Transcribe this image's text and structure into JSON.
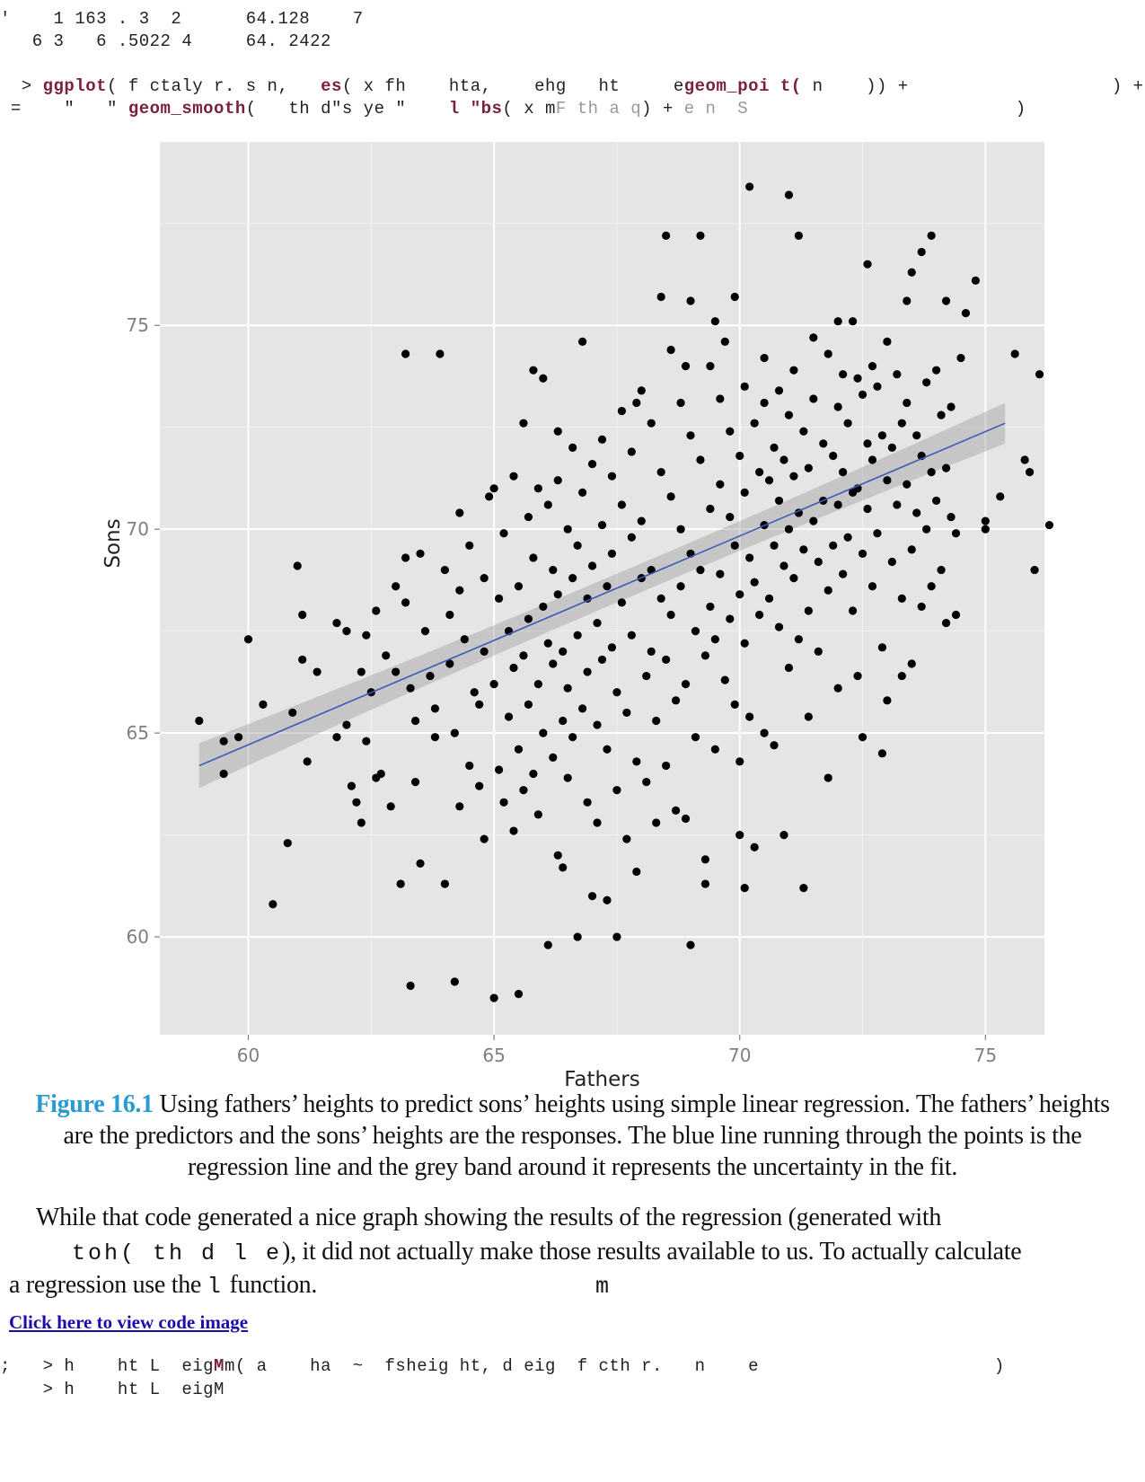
{
  "code_top": {
    "line1": "'    1 163 . 3  2      64.128    7",
    "line2": "   6 3   6 .5022 4     64. 2422",
    "line3_a": "  > ",
    "line3_kw1": "ggplot",
    "line3_b": "( f ctaly r. s n,   ",
    "line3_kw2": "es",
    "line3_c": "( x fh    hta,    ehg   ht     e",
    "line3_kw3": "geom_poi t(",
    "line3_d": " n    )) +                   ) +",
    "line4_a": " =    \"   \" ",
    "line4_kw1": "geom_smooth",
    "line4_b": "(   th d\"s ye \"    ",
    "line4_kw2": "l \"bs",
    "line4_c": "( x m",
    "line4_cm": "F th a q",
    "line4_d": ") + ",
    "line4_cm2": "e n  S",
    "line4_e": "                         )"
  },
  "chart_data": {
    "type": "scatter",
    "title": "",
    "xlabel": "Fathers",
    "ylabel": "Sons",
    "xlim": [
      58.2,
      76.2
    ],
    "ylim": [
      57.6,
      79.5
    ],
    "xticks": [
      60,
      65,
      70,
      75
    ],
    "yticks": [
      60,
      65,
      70,
      75
    ],
    "grid": true,
    "regression": {
      "x": [
        59.0,
        75.4
      ],
      "y": [
        64.2,
        72.6
      ],
      "band": [
        0.55,
        0.18,
        0.5
      ],
      "color": "#3a5ab8"
    },
    "points": [
      [
        59.0,
        65.3
      ],
      [
        59.5,
        64.8
      ],
      [
        59.5,
        64.0
      ],
      [
        59.8,
        64.9
      ],
      [
        60.0,
        67.3
      ],
      [
        60.3,
        65.7
      ],
      [
        60.5,
        60.8
      ],
      [
        60.8,
        62.3
      ],
      [
        60.9,
        65.5
      ],
      [
        61.0,
        69.1
      ],
      [
        61.1,
        67.9
      ],
      [
        61.1,
        66.8
      ],
      [
        61.2,
        64.3
      ],
      [
        61.4,
        66.5
      ],
      [
        61.8,
        67.7
      ],
      [
        62.0,
        67.5
      ],
      [
        62.0,
        65.2
      ],
      [
        62.1,
        63.7
      ],
      [
        62.2,
        63.3
      ],
      [
        62.3,
        62.8
      ],
      [
        62.4,
        67.4
      ],
      [
        62.4,
        64.8
      ],
      [
        62.5,
        66.0
      ],
      [
        62.6,
        68.0
      ],
      [
        62.6,
        63.9
      ],
      [
        62.7,
        64.0
      ],
      [
        62.8,
        66.9
      ],
      [
        62.9,
        63.2
      ],
      [
        63.0,
        68.6
      ],
      [
        63.0,
        66.5
      ],
      [
        63.1,
        61.3
      ],
      [
        63.2,
        69.3
      ],
      [
        63.2,
        68.2
      ],
      [
        63.3,
        66.1
      ],
      [
        63.4,
        65.3
      ],
      [
        63.4,
        63.8
      ],
      [
        63.5,
        69.4
      ],
      [
        63.5,
        61.8
      ],
      [
        63.6,
        67.5
      ],
      [
        63.7,
        66.4
      ],
      [
        63.8,
        65.6
      ],
      [
        63.8,
        64.9
      ],
      [
        63.9,
        74.3
      ],
      [
        64.0,
        69.0
      ],
      [
        64.1,
        67.9
      ],
      [
        64.1,
        66.7
      ],
      [
        64.2,
        65.0
      ],
      [
        64.2,
        58.9
      ],
      [
        64.3,
        70.4
      ],
      [
        64.3,
        68.5
      ],
      [
        64.3,
        63.2
      ],
      [
        64.4,
        67.3
      ],
      [
        64.5,
        69.6
      ],
      [
        64.5,
        64.2
      ],
      [
        64.6,
        66.0
      ],
      [
        64.7,
        65.7
      ],
      [
        64.7,
        63.7
      ],
      [
        64.8,
        68.8
      ],
      [
        64.8,
        67.0
      ],
      [
        64.8,
        62.4
      ],
      [
        64.9,
        70.8
      ],
      [
        65.0,
        66.2
      ],
      [
        65.0,
        58.5
      ],
      [
        65.1,
        68.3
      ],
      [
        65.1,
        64.1
      ],
      [
        65.2,
        69.9
      ],
      [
        65.2,
        63.3
      ],
      [
        65.3,
        67.5
      ],
      [
        65.3,
        65.4
      ],
      [
        65.4,
        71.3
      ],
      [
        65.4,
        66.6
      ],
      [
        65.4,
        62.6
      ],
      [
        65.5,
        68.6
      ],
      [
        65.5,
        64.6
      ],
      [
        65.6,
        72.6
      ],
      [
        65.6,
        66.9
      ],
      [
        65.6,
        63.6
      ],
      [
        65.7,
        70.3
      ],
      [
        65.7,
        67.8
      ],
      [
        65.7,
        65.7
      ],
      [
        65.8,
        73.9
      ],
      [
        65.8,
        69.3
      ],
      [
        65.8,
        64.0
      ],
      [
        65.9,
        71.0
      ],
      [
        65.9,
        66.2
      ],
      [
        65.9,
        63.0
      ],
      [
        66.0,
        68.1
      ],
      [
        66.0,
        65.0
      ],
      [
        66.1,
        70.6
      ],
      [
        66.1,
        67.2
      ],
      [
        66.1,
        59.8
      ],
      [
        66.2,
        69.0
      ],
      [
        66.2,
        66.7
      ],
      [
        66.2,
        64.4
      ],
      [
        66.3,
        71.2
      ],
      [
        66.3,
        68.4
      ],
      [
        66.3,
        62.0
      ],
      [
        66.4,
        67.0
      ],
      [
        66.4,
        65.3
      ],
      [
        66.4,
        61.7
      ],
      [
        66.5,
        70.0
      ],
      [
        66.5,
        66.1
      ],
      [
        66.5,
        63.9
      ],
      [
        66.6,
        72.0
      ],
      [
        66.6,
        68.8
      ],
      [
        66.6,
        64.9
      ],
      [
        66.7,
        69.6
      ],
      [
        66.7,
        67.4
      ],
      [
        66.7,
        60.0
      ],
      [
        66.8,
        74.6
      ],
      [
        66.8,
        70.9
      ],
      [
        66.8,
        65.6
      ],
      [
        66.9,
        68.3
      ],
      [
        66.9,
        66.5
      ],
      [
        66.9,
        63.3
      ],
      [
        67.0,
        71.6
      ],
      [
        67.0,
        69.1
      ],
      [
        67.0,
        61.0
      ],
      [
        67.1,
        67.7
      ],
      [
        67.1,
        65.2
      ],
      [
        67.1,
        62.8
      ],
      [
        67.2,
        72.2
      ],
      [
        67.2,
        70.1
      ],
      [
        67.2,
        66.8
      ],
      [
        67.3,
        68.6
      ],
      [
        67.3,
        64.6
      ],
      [
        67.3,
        60.9
      ],
      [
        67.4,
        71.3
      ],
      [
        67.4,
        69.4
      ],
      [
        67.4,
        67.1
      ],
      [
        67.5,
        66.0
      ],
      [
        67.5,
        63.6
      ],
      [
        67.6,
        72.9
      ],
      [
        67.6,
        70.6
      ],
      [
        67.6,
        68.2
      ],
      [
        67.7,
        65.5
      ],
      [
        67.7,
        62.4
      ],
      [
        67.8,
        71.9
      ],
      [
        67.8,
        69.8
      ],
      [
        67.8,
        67.4
      ],
      [
        67.9,
        64.3
      ],
      [
        67.9,
        61.6
      ],
      [
        68.0,
        73.4
      ],
      [
        68.0,
        70.2
      ],
      [
        68.0,
        68.8
      ],
      [
        68.1,
        66.4
      ],
      [
        68.1,
        63.8
      ],
      [
        68.2,
        72.6
      ],
      [
        68.2,
        69.0
      ],
      [
        68.2,
        67.0
      ],
      [
        68.3,
        65.3
      ],
      [
        68.3,
        62.8
      ],
      [
        68.4,
        75.7
      ],
      [
        68.4,
        71.4
      ],
      [
        68.4,
        68.3
      ],
      [
        68.5,
        66.8
      ],
      [
        68.5,
        64.2
      ],
      [
        68.6,
        74.4
      ],
      [
        68.6,
        70.8
      ],
      [
        68.6,
        67.9
      ],
      [
        68.7,
        65.8
      ],
      [
        68.7,
        63.1
      ],
      [
        68.8,
        73.1
      ],
      [
        68.8,
        70.0
      ],
      [
        68.8,
        68.6
      ],
      [
        68.9,
        66.2
      ],
      [
        68.9,
        62.9
      ],
      [
        69.0,
        75.6
      ],
      [
        69.0,
        72.3
      ],
      [
        69.0,
        69.4
      ],
      [
        69.0,
        59.8
      ],
      [
        69.1,
        67.5
      ],
      [
        69.1,
        64.9
      ],
      [
        69.2,
        77.2
      ],
      [
        69.2,
        71.7
      ],
      [
        69.2,
        69.0
      ],
      [
        69.3,
        66.9
      ],
      [
        69.3,
        61.9
      ],
      [
        69.4,
        74.0
      ],
      [
        69.4,
        70.5
      ],
      [
        69.4,
        68.1
      ],
      [
        69.5,
        67.3
      ],
      [
        69.5,
        64.6
      ],
      [
        69.6,
        73.2
      ],
      [
        69.6,
        71.1
      ],
      [
        69.6,
        68.9
      ],
      [
        69.7,
        74.6
      ],
      [
        69.7,
        66.3
      ],
      [
        69.8,
        72.4
      ],
      [
        69.8,
        70.3
      ],
      [
        69.8,
        67.8
      ],
      [
        69.9,
        75.7
      ],
      [
        69.9,
        69.6
      ],
      [
        69.9,
        65.7
      ],
      [
        70.0,
        71.8
      ],
      [
        70.0,
        68.4
      ],
      [
        70.0,
        64.3
      ],
      [
        70.1,
        73.5
      ],
      [
        70.1,
        70.9
      ],
      [
        70.1,
        67.2
      ],
      [
        70.2,
        78.4
      ],
      [
        70.2,
        69.3
      ],
      [
        70.2,
        65.4
      ],
      [
        70.3,
        72.6
      ],
      [
        70.3,
        68.7
      ],
      [
        70.3,
        62.2
      ],
      [
        70.4,
        71.4
      ],
      [
        70.4,
        67.9
      ],
      [
        70.5,
        73.1
      ],
      [
        70.5,
        70.1
      ],
      [
        70.5,
        65.0
      ],
      [
        70.6,
        71.2
      ],
      [
        70.6,
        68.3
      ],
      [
        70.7,
        72.0
      ],
      [
        70.7,
        69.6
      ],
      [
        70.7,
        64.7
      ],
      [
        70.8,
        73.4
      ],
      [
        70.8,
        70.7
      ],
      [
        70.8,
        67.6
      ],
      [
        70.9,
        71.7
      ],
      [
        70.9,
        69.1
      ],
      [
        70.9,
        62.5
      ],
      [
        71.0,
        78.2
      ],
      [
        71.0,
        72.8
      ],
      [
        71.0,
        70.0
      ],
      [
        71.0,
        66.6
      ],
      [
        71.1,
        73.9
      ],
      [
        71.1,
        71.3
      ],
      [
        71.1,
        68.8
      ],
      [
        71.2,
        77.2
      ],
      [
        71.2,
        70.4
      ],
      [
        71.2,
        67.3
      ],
      [
        71.3,
        72.4
      ],
      [
        71.3,
        69.5
      ],
      [
        71.3,
        61.2
      ],
      [
        71.4,
        71.5
      ],
      [
        71.4,
        68.0
      ],
      [
        71.4,
        65.4
      ],
      [
        71.5,
        73.2
      ],
      [
        71.5,
        70.2
      ],
      [
        71.6,
        69.2
      ],
      [
        71.6,
        67.0
      ],
      [
        71.7,
        72.1
      ],
      [
        71.7,
        70.7
      ],
      [
        71.8,
        74.3
      ],
      [
        71.8,
        68.5
      ],
      [
        71.8,
        63.9
      ],
      [
        71.9,
        71.8
      ],
      [
        71.9,
        69.6
      ],
      [
        72.0,
        73.0
      ],
      [
        72.0,
        70.6
      ],
      [
        72.0,
        66.1
      ],
      [
        72.1,
        73.8
      ],
      [
        72.1,
        71.4
      ],
      [
        72.1,
        68.9
      ],
      [
        72.2,
        72.6
      ],
      [
        72.2,
        69.8
      ],
      [
        72.3,
        75.1
      ],
      [
        72.3,
        70.9
      ],
      [
        72.3,
        68.0
      ],
      [
        72.4,
        73.7
      ],
      [
        72.4,
        71.0
      ],
      [
        72.4,
        66.4
      ],
      [
        72.5,
        73.3
      ],
      [
        72.5,
        69.4
      ],
      [
        72.5,
        64.9
      ],
      [
        72.6,
        72.1
      ],
      [
        72.6,
        70.5
      ],
      [
        72.7,
        74.0
      ],
      [
        72.7,
        71.7
      ],
      [
        72.7,
        68.6
      ],
      [
        72.8,
        73.5
      ],
      [
        72.8,
        69.9
      ],
      [
        72.9,
        72.3
      ],
      [
        72.9,
        67.1
      ],
      [
        72.9,
        64.5
      ],
      [
        73.0,
        74.6
      ],
      [
        73.0,
        71.2
      ],
      [
        73.1,
        72.0
      ],
      [
        73.1,
        69.2
      ],
      [
        73.2,
        73.8
      ],
      [
        73.2,
        70.6
      ],
      [
        73.3,
        72.6
      ],
      [
        73.3,
        68.3
      ],
      [
        73.3,
        66.4
      ],
      [
        73.4,
        73.1
      ],
      [
        73.4,
        71.1
      ],
      [
        73.5,
        76.3
      ],
      [
        73.5,
        69.5
      ],
      [
        73.5,
        66.7
      ],
      [
        73.6,
        72.3
      ],
      [
        73.6,
        70.4
      ],
      [
        73.7,
        76.8
      ],
      [
        73.7,
        71.8
      ],
      [
        73.7,
        68.1
      ],
      [
        73.8,
        73.6
      ],
      [
        73.8,
        70.0
      ],
      [
        73.9,
        77.2
      ],
      [
        73.9,
        71.4
      ],
      [
        73.9,
        68.6
      ],
      [
        74.0,
        73.9
      ],
      [
        74.0,
        70.7
      ],
      [
        74.1,
        72.8
      ],
      [
        74.1,
        69.0
      ],
      [
        74.2,
        75.6
      ],
      [
        74.2,
        71.5
      ],
      [
        74.2,
        67.7
      ],
      [
        74.3,
        73.0
      ],
      [
        74.3,
        70.3
      ],
      [
        74.4,
        69.9
      ],
      [
        74.4,
        67.9
      ],
      [
        74.6,
        75.3
      ],
      [
        74.8,
        76.1
      ],
      [
        75.0,
        70.2
      ],
      [
        75.0,
        70.0
      ],
      [
        75.3,
        70.8
      ],
      [
        75.6,
        74.3
      ],
      [
        75.8,
        71.7
      ],
      [
        75.9,
        71.4
      ],
      [
        76.0,
        69.0
      ],
      [
        76.1,
        73.8
      ],
      [
        76.3,
        70.1
      ],
      [
        63.2,
        74.3
      ],
      [
        66.0,
        73.7
      ],
      [
        68.5,
        77.2
      ],
      [
        72.0,
        75.1
      ],
      [
        70.0,
        62.5
      ],
      [
        65.5,
        58.6
      ],
      [
        63.3,
        58.8
      ],
      [
        67.5,
        60.0
      ],
      [
        64.0,
        61.3
      ],
      [
        61.8,
        64.9
      ],
      [
        62.3,
        66.5
      ],
      [
        65.0,
        71.0
      ],
      [
        66.3,
        72.4
      ],
      [
        67.9,
        73.1
      ],
      [
        68.9,
        74.0
      ],
      [
        69.5,
        75.1
      ],
      [
        70.5,
        74.2
      ],
      [
        71.5,
        74.7
      ],
      [
        72.6,
        76.5
      ],
      [
        73.4,
        75.6
      ],
      [
        74.5,
        74.2
      ],
      [
        73.0,
        65.8
      ],
      [
        69.3,
        61.3
      ],
      [
        70.1,
        61.2
      ]
    ]
  },
  "caption": {
    "figure_label": "Figure 16.1",
    "text": " Using fathers’ heights to predict sons’ heights using simple linear regression. The fathers’ heights are the predictors and the sons’ heights are the responses. The blue line running through the points is the regression line and the grey band around it represents the uncertainty in the fit."
  },
  "paragraph": {
    "line1": "While that code generated a nice graph showing the results of the regression (generated with",
    "line2_code": "toh(    th d   l  e",
    "line2_text": "), it did not actually make those results available to us. To actually calculate",
    "line3_a": "a regression use the ",
    "line3_code": "l",
    "line3_b": "  function.",
    "stray_m": "m"
  },
  "link_text": "Click here to view code image",
  "code_bottom": {
    "line1_a": ";   > h    ht L  eig",
    "line1_kw": "M",
    "line1_b": "m( a    ha  ",
    "line1_tilde": "~",
    "line1_c": "  fsheig ht, d eig  f cth r.   n    e                      )",
    "line2": "    > h    ht L  eigM"
  }
}
